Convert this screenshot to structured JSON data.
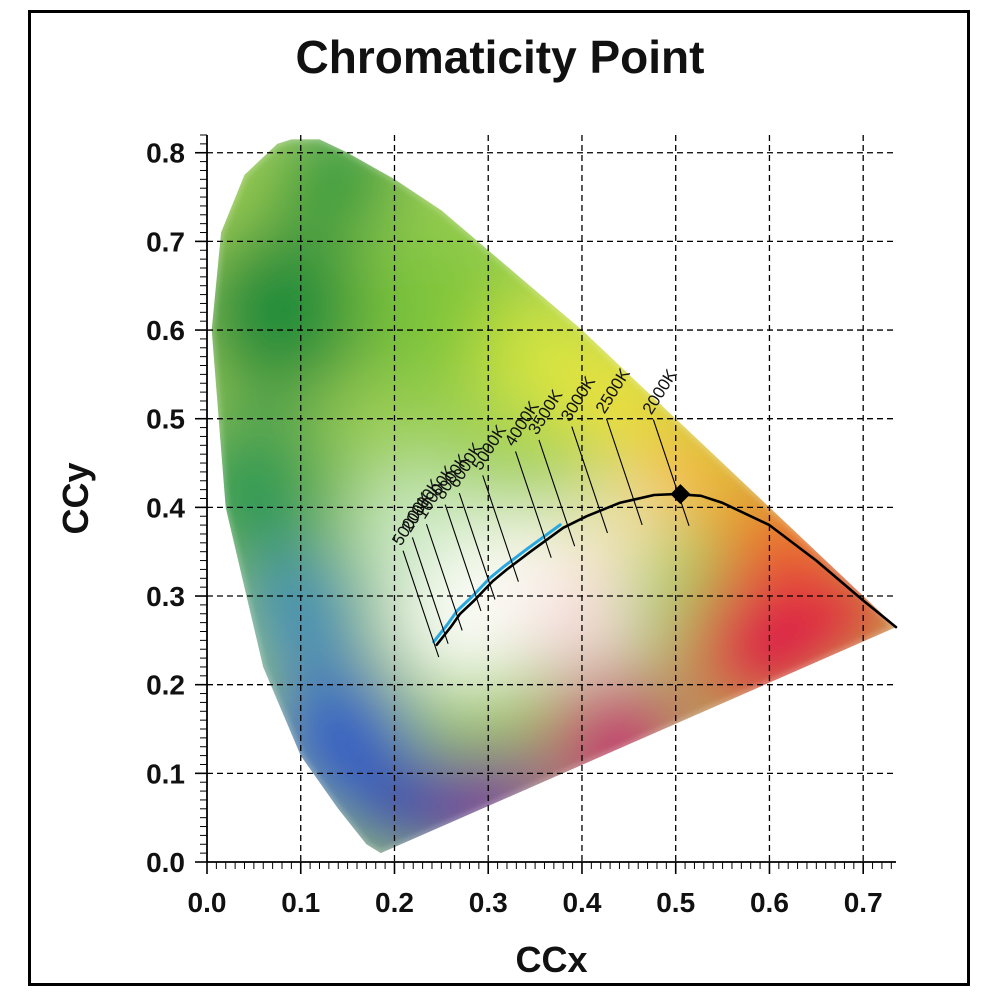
{
  "chart_data": {
    "type": "scatter",
    "title": "Chromaticity Point",
    "xlabel": "CCx",
    "ylabel": "CCy",
    "xlim": [
      0.0,
      0.735
    ],
    "ylim": [
      0.0,
      0.82
    ],
    "xticks": [
      0.0,
      0.1,
      0.2,
      0.3,
      0.4,
      0.5,
      0.6,
      0.7
    ],
    "xtick_labels": [
      "0.0",
      "0.1",
      "0.2",
      "0.3",
      "0.4",
      "0.5",
      "0.6",
      "0.7"
    ],
    "yticks": [
      0.0,
      0.1,
      0.2,
      0.3,
      0.4,
      0.5,
      0.6,
      0.7,
      0.8
    ],
    "ytick_labels": [
      "0.0",
      "0.1",
      "0.2",
      "0.3",
      "0.4",
      "0.5",
      "0.6",
      "0.7",
      "0.8"
    ],
    "grid": true,
    "spectral_locus": {
      "x": [
        0.735,
        0.64,
        0.55,
        0.5,
        0.45,
        0.4,
        0.35,
        0.3,
        0.25,
        0.2,
        0.15,
        0.12,
        0.09,
        0.075,
        0.04,
        0.015,
        0.005,
        0.02,
        0.06,
        0.1,
        0.14,
        0.17,
        0.1855
      ],
      "y": [
        0.265,
        0.36,
        0.45,
        0.5,
        0.55,
        0.6,
        0.645,
        0.69,
        0.735,
        0.77,
        0.8,
        0.815,
        0.815,
        0.81,
        0.775,
        0.71,
        0.6,
        0.4,
        0.22,
        0.12,
        0.06,
        0.02,
        0.01
      ]
    },
    "planckian_locus": {
      "x": [
        0.735,
        0.7,
        0.65,
        0.6,
        0.55,
        0.527,
        0.5,
        0.477,
        0.44,
        0.405,
        0.38,
        0.345,
        0.32,
        0.305,
        0.285,
        0.27,
        0.26,
        0.245
      ],
      "y": [
        0.265,
        0.295,
        0.34,
        0.38,
        0.405,
        0.413,
        0.415,
        0.414,
        0.405,
        0.39,
        0.377,
        0.35,
        0.33,
        0.317,
        0.295,
        0.28,
        0.265,
        0.245
      ]
    },
    "highlight_segment": {
      "x": [
        0.245,
        0.26,
        0.27,
        0.285,
        0.305,
        0.32,
        0.345,
        0.38
      ],
      "y": [
        0.245,
        0.265,
        0.28,
        0.295,
        0.317,
        0.33,
        0.35,
        0.377
      ],
      "color": "#29a8e0"
    },
    "cct_labels": [
      {
        "label": "2000K",
        "x": 0.527,
        "y": 0.413
      },
      {
        "label": "2500K",
        "x": 0.477,
        "y": 0.414
      },
      {
        "label": "3000K",
        "x": 0.44,
        "y": 0.405
      },
      {
        "label": "3500K",
        "x": 0.405,
        "y": 0.39
      },
      {
        "label": "4000K",
        "x": 0.38,
        "y": 0.377
      },
      {
        "label": "5000K",
        "x": 0.345,
        "y": 0.35
      },
      {
        "label": "6000K",
        "x": 0.32,
        "y": 0.33
      },
      {
        "label": "8000K",
        "x": 0.305,
        "y": 0.317
      },
      {
        "label": "10000K",
        "x": 0.285,
        "y": 0.295
      },
      {
        "label": "20000K",
        "x": 0.27,
        "y": 0.28
      },
      {
        "label": "50000K",
        "x": 0.26,
        "y": 0.265
      }
    ],
    "point": {
      "x": 0.505,
      "y": 0.415,
      "color": "#000000"
    }
  }
}
